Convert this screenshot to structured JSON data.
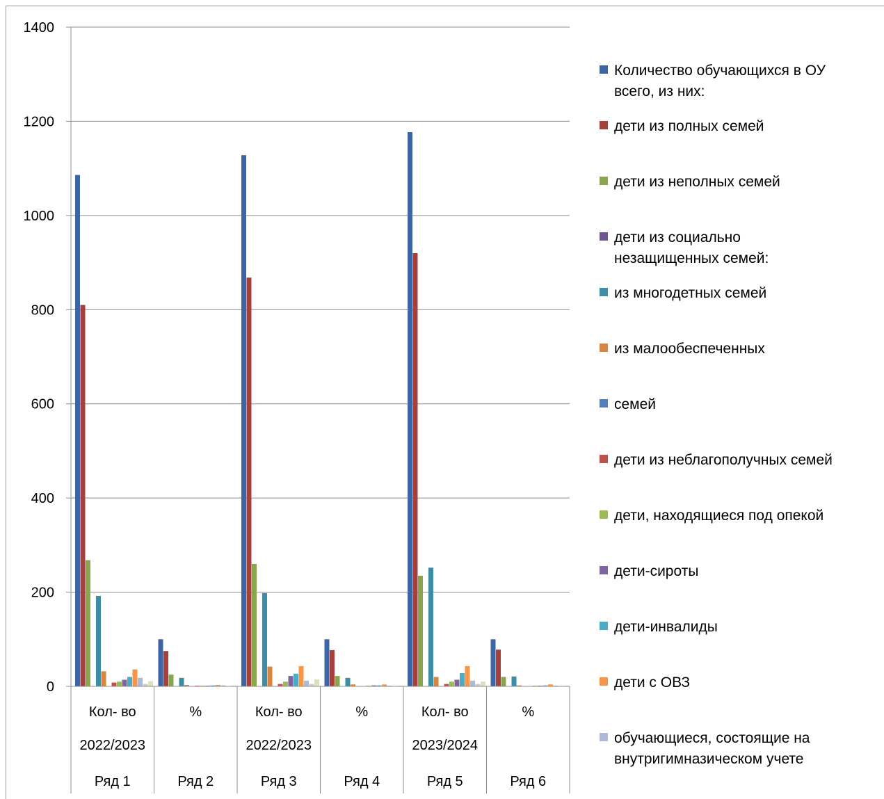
{
  "chart_data": {
    "type": "bar",
    "title": "",
    "xlabel": "",
    "ylabel": "",
    "ylim": [
      0,
      1400
    ],
    "yticks": [
      "0",
      "200",
      "400",
      "600",
      "800",
      "1000",
      "1200",
      "1400"
    ],
    "grid": true,
    "legend_position": "right",
    "categories": [
      {
        "row1": "Кол- во",
        "row2": "2022/2023",
        "row3": "Ряд 1"
      },
      {
        "row1": "%",
        "row2": "",
        "row3": "Ряд 2"
      },
      {
        "row1": "Кол- во",
        "row2": "2022/2023",
        "row3": "Ряд 3"
      },
      {
        "row1": "%",
        "row2": "",
        "row3": "Ряд 4"
      },
      {
        "row1": "Кол- во",
        "row2": "2023/2024",
        "row3": "Ряд 5"
      },
      {
        "row1": "%",
        "row2": "",
        "row3": "Ряд 6"
      }
    ],
    "series": [
      {
        "name": "Количество обучающихся в ОУ всего, из них:",
        "color": "#3d64a4",
        "values": [
          1086,
          100,
          1128,
          100,
          1177,
          100
        ]
      },
      {
        "name": "  дети из полных семей",
        "color": "#a6403c",
        "values": [
          810,
          75,
          868,
          77,
          920,
          78
        ]
      },
      {
        "name": "дети из неполных семей",
        "color": "#89a54e",
        "values": [
          268,
          25,
          260,
          22,
          235,
          20
        ]
      },
      {
        "name": "дети из социально незащищенных семей:",
        "color": "#6f548f",
        "values": [
          0,
          0,
          0,
          0,
          0,
          0
        ]
      },
      {
        "name": "из многодетных семей",
        "color": "#3b8ea5",
        "values": [
          192,
          18,
          198,
          18,
          252,
          21
        ]
      },
      {
        "name": "из малообеспеченных",
        "color": "#db843d",
        "values": [
          32,
          3,
          42,
          4,
          20,
          2
        ]
      },
      {
        "name": "семей",
        "color": "#4f81bd",
        "values": [
          0,
          0,
          0,
          0,
          0,
          0
        ]
      },
      {
        "name": "дети из неблагополучных семей",
        "color": "#c0504d",
        "values": [
          8,
          1,
          5,
          0,
          5,
          0
        ]
      },
      {
        "name": "дети, находящиеся под опекой",
        "color": "#9bbb59",
        "values": [
          10,
          1,
          10,
          1,
          10,
          1
        ]
      },
      {
        "name": "дети-сироты",
        "color": "#8064a2",
        "values": [
          14,
          1,
          22,
          2,
          14,
          1
        ]
      },
      {
        "name": "дети-инвалиды",
        "color": "#4bacc6",
        "values": [
          20,
          2,
          27,
          2,
          28,
          2
        ]
      },
      {
        "name": "дети с ОВЗ",
        "color": "#f79646",
        "values": [
          36,
          3,
          43,
          4,
          43,
          4
        ]
      },
      {
        "name": "обучающиеся, состоящие на внутригимназическом учете",
        "color": "#aabad7",
        "values": [
          18,
          2,
          12,
          1,
          12,
          1
        ]
      },
      {
        "name": "",
        "color": "#d6c9c9",
        "values": [
          5,
          0,
          5,
          0,
          5,
          0
        ]
      },
      {
        "name": "",
        "color": "#d7e4bd",
        "values": [
          11,
          1,
          15,
          1,
          10,
          1
        ]
      }
    ]
  }
}
